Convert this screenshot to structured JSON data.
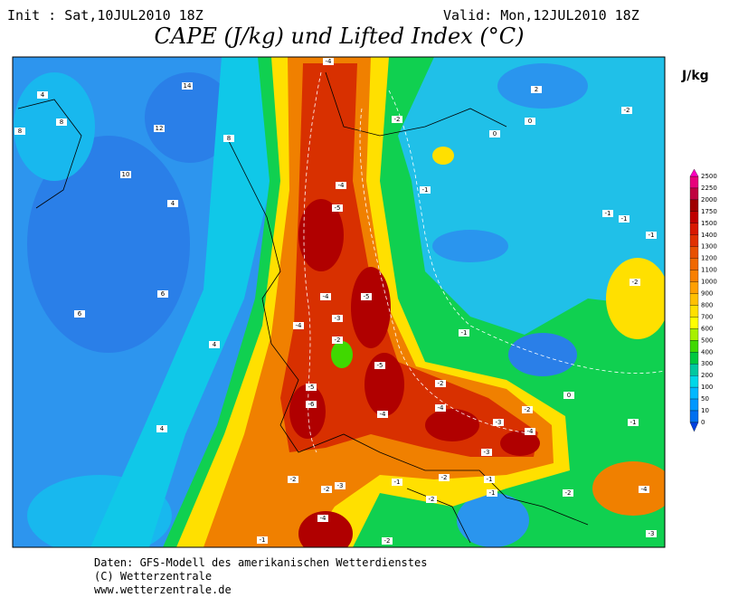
{
  "header": {
    "init": "Init : Sat,10JUL2010 18Z",
    "valid": "Valid: Mon,12JUL2010 18Z",
    "title": "CAPE (J/kg) und Lifted Index (°C)"
  },
  "colorbar": {
    "unit": "J/kg",
    "levels": [
      2500,
      2250,
      2000,
      1750,
      1500,
      1400,
      1300,
      1200,
      1100,
      1000,
      900,
      800,
      700,
      600,
      500,
      400,
      300,
      200,
      100,
      50,
      10,
      0
    ],
    "colors": [
      "#e8007c",
      "#c00040",
      "#a00000",
      "#c00000",
      "#d81800",
      "#e03000",
      "#e85000",
      "#f06800",
      "#f88000",
      "#ffa000",
      "#ffc000",
      "#ffe000",
      "#ffff00",
      "#a8f000",
      "#40d800",
      "#00c840",
      "#00c8a0",
      "#00d8e8",
      "#00b8ff",
      "#0098ff",
      "#0070f0"
    ]
  },
  "map": {
    "contour_labels": [
      -4,
      4,
      14,
      8,
      8,
      12,
      8,
      10,
      4,
      -2,
      2,
      -2,
      0,
      0,
      -1,
      -4,
      -5,
      -1,
      -1,
      -1,
      6,
      -4,
      -5,
      -3,
      -4,
      6,
      4,
      -2,
      -1,
      -2,
      -5,
      -2,
      -5,
      -6,
      -4,
      -4,
      -2,
      0,
      -3,
      -4,
      -1,
      4,
      -3,
      -2,
      -2,
      -3,
      -1,
      -2,
      -1,
      -2,
      -4,
      -2,
      -1,
      -4,
      -1,
      -2,
      -3
    ]
  },
  "footer": {
    "line1": "Daten: GFS-Modell des amerikanischen Wetterdienstes",
    "line2": "(C) Wetterzentrale",
    "line3": "www.wetterzentrale.de"
  }
}
